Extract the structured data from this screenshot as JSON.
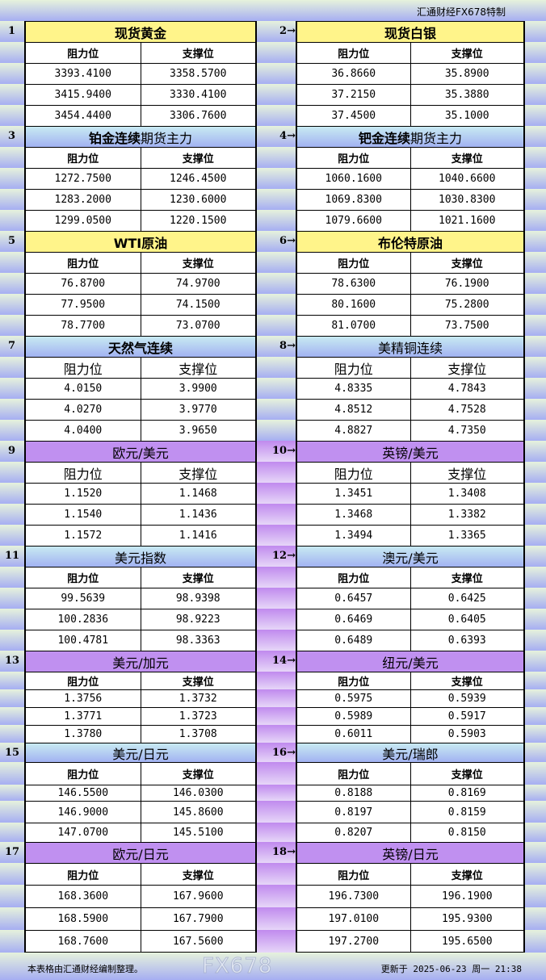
{
  "header": {
    "brand": "汇通财经FX678特制"
  },
  "colors": {
    "yellow": "#fff48a",
    "blue": "#b4d8f2",
    "purple": "#c090f0"
  },
  "arrow": "→",
  "blocks": [
    {
      "num": "1",
      "title_bold": "现货黄金",
      "title_normal": "",
      "theme": "yellow",
      "header": [
        "阻力位",
        "支撑位"
      ],
      "rows": [
        [
          "3393.4100",
          "3358.5700"
        ],
        [
          "3415.9400",
          "3330.4100"
        ],
        [
          "3454.4400",
          "3306.7600"
        ]
      ]
    },
    {
      "num": "2",
      "title_bold": "现货白银",
      "title_normal": "",
      "theme": "yellow",
      "header": [
        "阻力位",
        "支撑位"
      ],
      "rows": [
        [
          "36.8660",
          "35.8900"
        ],
        [
          "37.2150",
          "35.3880"
        ],
        [
          "37.4500",
          "35.1000"
        ]
      ]
    },
    {
      "num": "3",
      "title_bold": "铂金连续",
      "title_normal": "期货主力",
      "theme": "blue",
      "header": [
        "阻力位",
        "支撑位"
      ],
      "rows": [
        [
          "1272.7500",
          "1246.4500"
        ],
        [
          "1283.2000",
          "1230.6000"
        ],
        [
          "1299.0500",
          "1220.1500"
        ]
      ]
    },
    {
      "num": "4",
      "title_bold": "钯金连续",
      "title_normal": "期货主力",
      "theme": "blue",
      "header": [
        "阻力位",
        "支撑位"
      ],
      "rows": [
        [
          "1060.1600",
          "1040.6600"
        ],
        [
          "1069.8300",
          "1030.8300"
        ],
        [
          "1079.6600",
          "1021.1600"
        ]
      ]
    },
    {
      "num": "5",
      "title_bold": "WTI原油",
      "title_normal": "",
      "theme": "yellow",
      "header": [
        "阻力位",
        "支撑位"
      ],
      "rows": [
        [
          "76.8700",
          "74.9700"
        ],
        [
          "77.9500",
          "74.1500"
        ],
        [
          "78.7700",
          "73.0700"
        ]
      ]
    },
    {
      "num": "6",
      "title_bold": "布伦特原油",
      "title_normal": "",
      "theme": "yellow",
      "header": [
        "阻力位",
        "支撑位"
      ],
      "rows": [
        [
          "78.6300",
          "76.1900"
        ],
        [
          "80.1600",
          "75.2800"
        ],
        [
          "81.0700",
          "73.7500"
        ]
      ]
    },
    {
      "num": "7",
      "title_bold": "天然气连续",
      "title_normal": "",
      "theme": "blue",
      "header": [
        "阻力位",
        "支撑位"
      ],
      "rows": [
        [
          "4.0150",
          "3.9900"
        ],
        [
          "4.0270",
          "3.9770"
        ],
        [
          "4.0400",
          "3.9650"
        ]
      ]
    },
    {
      "num": "8",
      "title_bold": "",
      "title_normal": "美精铜连续",
      "theme": "blue",
      "header": [
        "阻力位",
        "支撑位"
      ],
      "rows": [
        [
          "4.8335",
          "4.7843"
        ],
        [
          "4.8512",
          "4.7528"
        ],
        [
          "4.8827",
          "4.7350"
        ]
      ]
    },
    {
      "num": "9",
      "title_bold": "",
      "title_normal": "欧元/美元",
      "theme": "purple",
      "header": [
        "阻力位",
        "支撑位"
      ],
      "rows": [
        [
          "1.1520",
          "1.1468"
        ],
        [
          "1.1540",
          "1.1436"
        ],
        [
          "1.1572",
          "1.1416"
        ]
      ]
    },
    {
      "num": "10",
      "title_bold": "",
      "title_normal": "英镑/美元",
      "theme": "purple",
      "header": [
        "阻力位",
        "支撑位"
      ],
      "rows": [
        [
          "1.3451",
          "1.3408"
        ],
        [
          "1.3468",
          "1.3382"
        ],
        [
          "1.3494",
          "1.3365"
        ]
      ]
    },
    {
      "num": "11",
      "title_bold": "",
      "title_normal": "美元指数",
      "theme": "blue",
      "header": [
        "阻力位",
        "支撑位"
      ],
      "rows": [
        [
          "99.5639",
          "98.9398"
        ],
        [
          "100.2836",
          "98.9223"
        ],
        [
          "100.4781",
          "98.3363"
        ]
      ]
    },
    {
      "num": "12",
      "title_bold": "",
      "title_normal": "澳元/美元",
      "theme": "blue",
      "header": [
        "阻力位",
        "支撑位"
      ],
      "rows": [
        [
          "0.6457",
          "0.6425"
        ],
        [
          "0.6469",
          "0.6405"
        ],
        [
          "0.6489",
          "0.6393"
        ]
      ]
    },
    {
      "num": "13",
      "title_bold": "",
      "title_normal": "美元/加元",
      "theme": "purple",
      "header": [
        "阻力位",
        "支撑位"
      ],
      "rows": [
        [
          "1.3756",
          "1.3732"
        ],
        [
          "1.3771",
          "1.3723"
        ],
        [
          "1.3780",
          "1.3708"
        ]
      ]
    },
    {
      "num": "14",
      "title_bold": "",
      "title_normal": "纽元/美元",
      "theme": "purple",
      "header": [
        "阻力位",
        "支撑位"
      ],
      "rows": [
        [
          "0.5975",
          "0.5939"
        ],
        [
          "0.5989",
          "0.5917"
        ],
        [
          "0.6011",
          "0.5903"
        ]
      ]
    },
    {
      "num": "15",
      "title_bold": "",
      "title_normal": "美元/日元",
      "theme": "blue",
      "header": [
        "阻力位",
        "支撑位"
      ],
      "rows": [
        [
          "146.5500",
          "146.0300"
        ],
        [
          "146.9000",
          "145.8600"
        ],
        [
          "147.0700",
          "145.5100"
        ]
      ]
    },
    {
      "num": "16",
      "title_bold": "",
      "title_normal": "美元/瑞郎",
      "theme": "blue",
      "header": [
        "阻力位",
        "支撑位"
      ],
      "rows": [
        [
          "0.8188",
          "0.8169"
        ],
        [
          "0.8197",
          "0.8159"
        ],
        [
          "0.8207",
          "0.8150"
        ]
      ]
    },
    {
      "num": "17",
      "title_bold": "",
      "title_normal": "欧元/日元",
      "theme": "purple",
      "header": [
        "阻力位",
        "支撑位"
      ],
      "rows": [
        [
          "168.3600",
          "167.9600"
        ],
        [
          "168.5900",
          "167.7900"
        ],
        [
          "168.7600",
          "167.5600"
        ]
      ]
    },
    {
      "num": "18",
      "title_bold": "",
      "title_normal": "英镑/日元",
      "theme": "purple",
      "header": [
        "阻力位",
        "支撑位"
      ],
      "rows": [
        [
          "196.7300",
          "196.1900"
        ],
        [
          "197.0100",
          "195.9300"
        ],
        [
          "197.2700",
          "195.6500"
        ]
      ]
    }
  ],
  "footer": {
    "note": "本表格由汇通财经编制整理。",
    "updated": "更新于 2025-06-23 周一 21:38",
    "watermark": "FX678"
  }
}
